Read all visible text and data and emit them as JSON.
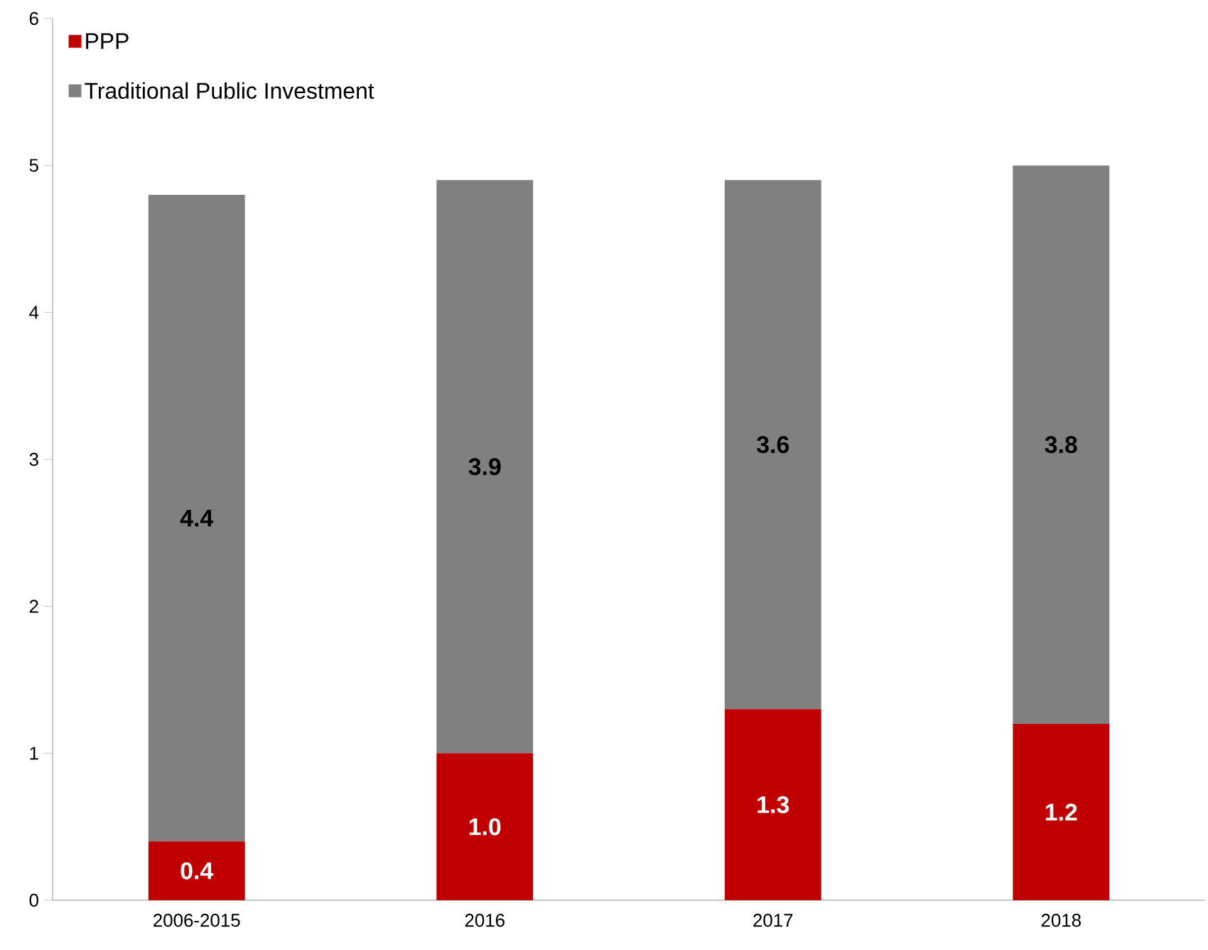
{
  "chart_data": {
    "type": "bar",
    "stacked": true,
    "categories": [
      "2006-2015",
      "2016",
      "2017",
      "2018"
    ],
    "series": [
      {
        "name": "PPP",
        "color": "#c00000",
        "values": [
          0.4,
          1.0,
          1.3,
          1.2
        ],
        "value_labels": [
          "0.4",
          "1.0",
          "1.3",
          "1.2"
        ]
      },
      {
        "name": "Traditional Public Investment",
        "color": "#808080",
        "values": [
          4.4,
          3.9,
          3.6,
          3.8
        ],
        "value_labels": [
          "4.4",
          "3.9",
          "3.6",
          "3.8"
        ]
      }
    ],
    "ylim": [
      0,
      6
    ],
    "yticks": [
      0,
      1,
      2,
      3,
      4,
      5,
      6
    ],
    "legend": "top left",
    "grid": false
  }
}
